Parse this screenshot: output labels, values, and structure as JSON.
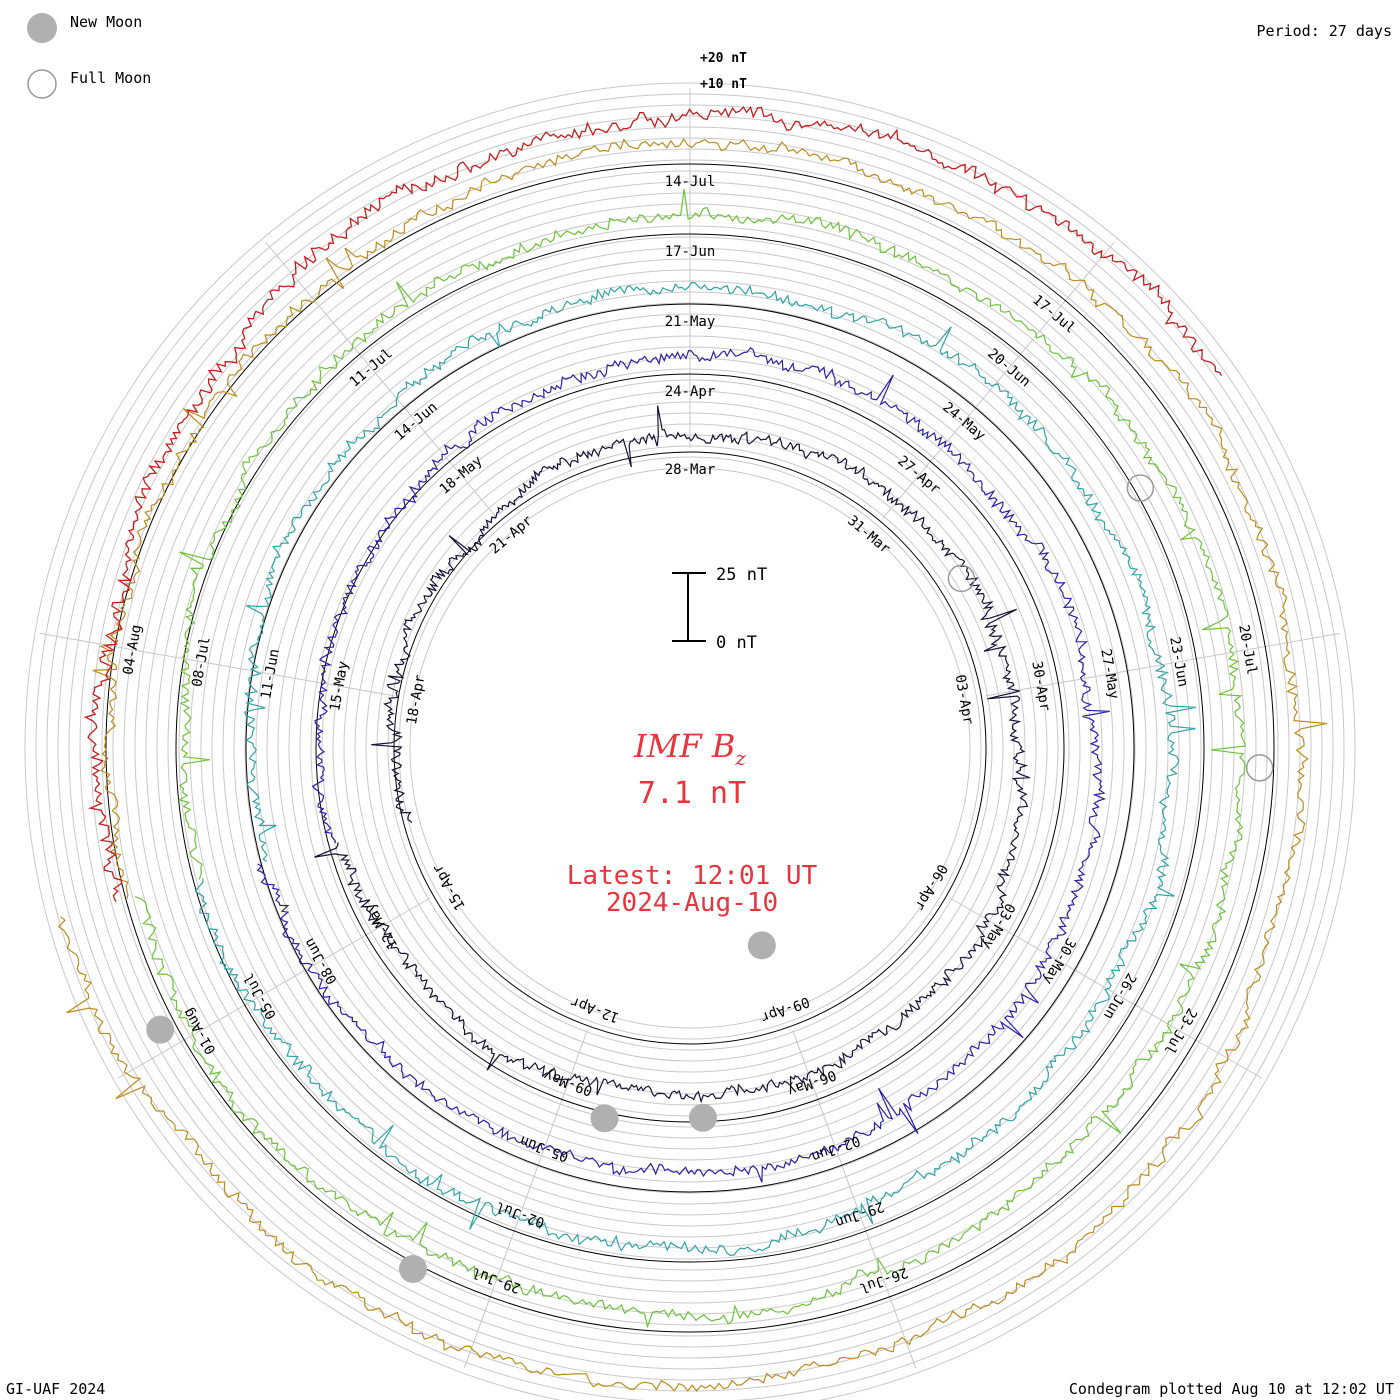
{
  "chart_data": {
    "type": "condegram",
    "title": "IMF B",
    "title_subscript": "z",
    "current_value": "7.1 nT",
    "latest_label": "Latest: 12:01 UT",
    "latest_date": "2024-Aug-10",
    "period_label": "Period: 27 days",
    "scale_bar": {
      "top_label": "25 nT",
      "bottom_label": "0 nT",
      "range_nT": [
        0,
        25
      ]
    },
    "outer_scale": {
      "labels": [
        "+20 nT",
        "+10 nT"
      ]
    },
    "legend": {
      "new_moon": "New Moon",
      "full_moon": "Full Moon"
    },
    "rotations": [
      {
        "start": "2024-03-28",
        "color": "#1a0f36",
        "dates": [
          "28-Mar",
          "31-Mar",
          "03-Apr",
          "06-Apr",
          "09-Apr",
          "12-Apr",
          "15-Apr",
          "18-Apr",
          "21-Apr"
        ]
      },
      {
        "start": "2024-04-24",
        "color": "#2a20a6",
        "dates": [
          "24-Apr",
          "27-Apr",
          "30-Apr",
          "03-May",
          "06-May",
          "09-May",
          "12-May",
          "15-May",
          "18-May"
        ]
      },
      {
        "start": "2024-05-21",
        "color": "#2fa3a8",
        "dates": [
          "21-May",
          "24-May",
          "27-May",
          "30-May",
          "02-Jun",
          "05-Jun",
          "08-Jun",
          "11-Jun",
          "14-Jun"
        ]
      },
      {
        "start": "2024-06-17",
        "color": "#6cc23a",
        "dates": [
          "17-Jun",
          "20-Jun",
          "23-Jun",
          "26-Jun",
          "29-Jun",
          "02-Jul",
          "05-Jul",
          "08-Jul",
          "11-Jul"
        ]
      },
      {
        "start": "2024-07-14",
        "color": "#c08a1c",
        "dates": [
          "14-Jul",
          "17-Jul",
          "20-Jul",
          "23-Jul",
          "26-Jul",
          "29-Jul",
          "01-Aug",
          "04-Aug"
        ]
      }
    ],
    "date_labels_outer_spiral": [
      "17-Jul",
      "20-Jul",
      "23-Jul",
      "26-Jul",
      "29-Jul",
      "01-Aug",
      "04-Aug",
      "08-Jul",
      "11-Jul"
    ],
    "latest_value_nT": 7.1,
    "units": "nT"
  },
  "footer": {
    "credit": "GI-UAF 2024",
    "plotted": "Condegram plotted Aug 10 at 12:02 UT"
  }
}
